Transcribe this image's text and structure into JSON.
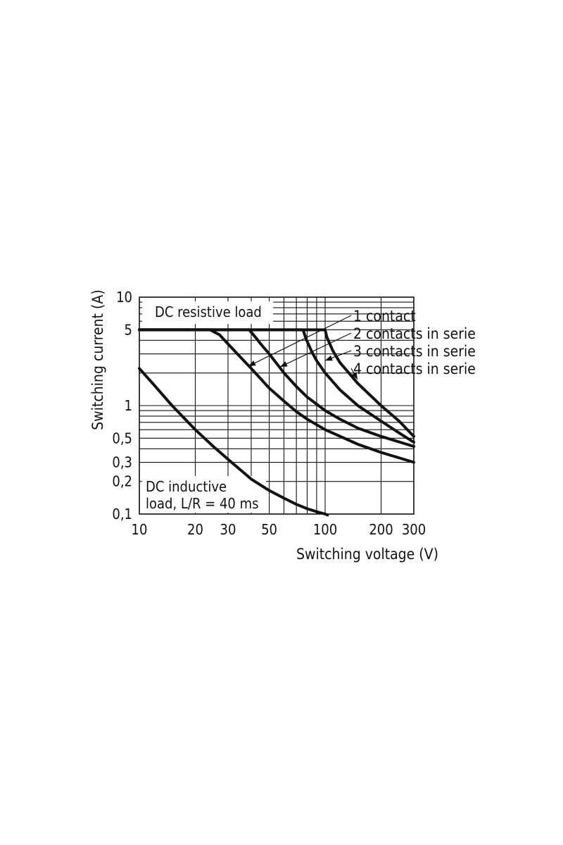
{
  "chart_data": {
    "type": "line",
    "title": "",
    "xlabel": "Switching voltage (V)",
    "ylabel": "Switching current (A)",
    "x_scale": "log",
    "y_scale": "log",
    "xlim": [
      10,
      300
    ],
    "ylim": [
      0.1,
      10
    ],
    "grid": true,
    "x_ticks": [
      {
        "value": 10,
        "label": "10"
      },
      {
        "value": 20,
        "label": "20"
      },
      {
        "value": 30,
        "label": "30"
      },
      {
        "value": 50,
        "label": "50"
      },
      {
        "value": 100,
        "label": "100"
      },
      {
        "value": 200,
        "label": "200"
      },
      {
        "value": 300,
        "label": "300"
      }
    ],
    "y_ticks": [
      {
        "value": 10,
        "label": "10"
      },
      {
        "value": 5,
        "label": "5"
      },
      {
        "value": 1,
        "label": "1"
      },
      {
        "value": 0.5,
        "label": "0,5"
      },
      {
        "value": 0.3,
        "label": "0,3"
      },
      {
        "value": 0.2,
        "label": "0,2"
      },
      {
        "value": 0.1,
        "label": "0,1"
      }
    ],
    "annotations": {
      "resistive": "DC resistive load",
      "inductive_line1": "DC inductive",
      "inductive_line2": "load, L/R = 40 ms"
    },
    "series": [
      {
        "name": "1 contact",
        "x": [
          10,
          24,
          27,
          30,
          35,
          40,
          50,
          60,
          70,
          80,
          100,
          150,
          200,
          300
        ],
        "y": [
          5,
          5,
          4.5,
          3.7,
          2.8,
          2.2,
          1.45,
          1.1,
          0.88,
          0.75,
          0.6,
          0.44,
          0.37,
          0.3
        ]
      },
      {
        "name": "2 contacts in serie",
        "x": [
          10,
          39,
          42,
          45,
          50,
          60,
          70,
          80,
          100,
          120,
          150,
          200,
          300
        ],
        "y": [
          5,
          5,
          4.3,
          3.7,
          3,
          2,
          1.5,
          1.2,
          0.9,
          0.75,
          0.62,
          0.52,
          0.42
        ]
      },
      {
        "name": "3 contacts in serie",
        "x": [
          10,
          76,
          79,
          85,
          90,
          100,
          120,
          150,
          200,
          250,
          300
        ],
        "y": [
          5,
          5,
          4.1,
          3.1,
          2.6,
          2,
          1.4,
          1,
          0.72,
          0.56,
          0.46
        ]
      },
      {
        "name": "4 contacts in serie",
        "x": [
          10,
          100,
          102,
          110,
          120,
          150,
          200,
          250,
          300
        ],
        "y": [
          5,
          5,
          4.3,
          3.2,
          2.5,
          1.6,
          1,
          0.72,
          0.52
        ]
      },
      {
        "name": "",
        "x": [
          10,
          12,
          15,
          20,
          25,
          30,
          40,
          50,
          60,
          70,
          80,
          90,
          100,
          103
        ],
        "y": [
          2.2,
          1.55,
          1,
          0.6,
          0.42,
          0.32,
          0.21,
          0.165,
          0.14,
          0.123,
          0.112,
          0.105,
          0.1,
          0.098
        ]
      }
    ]
  }
}
